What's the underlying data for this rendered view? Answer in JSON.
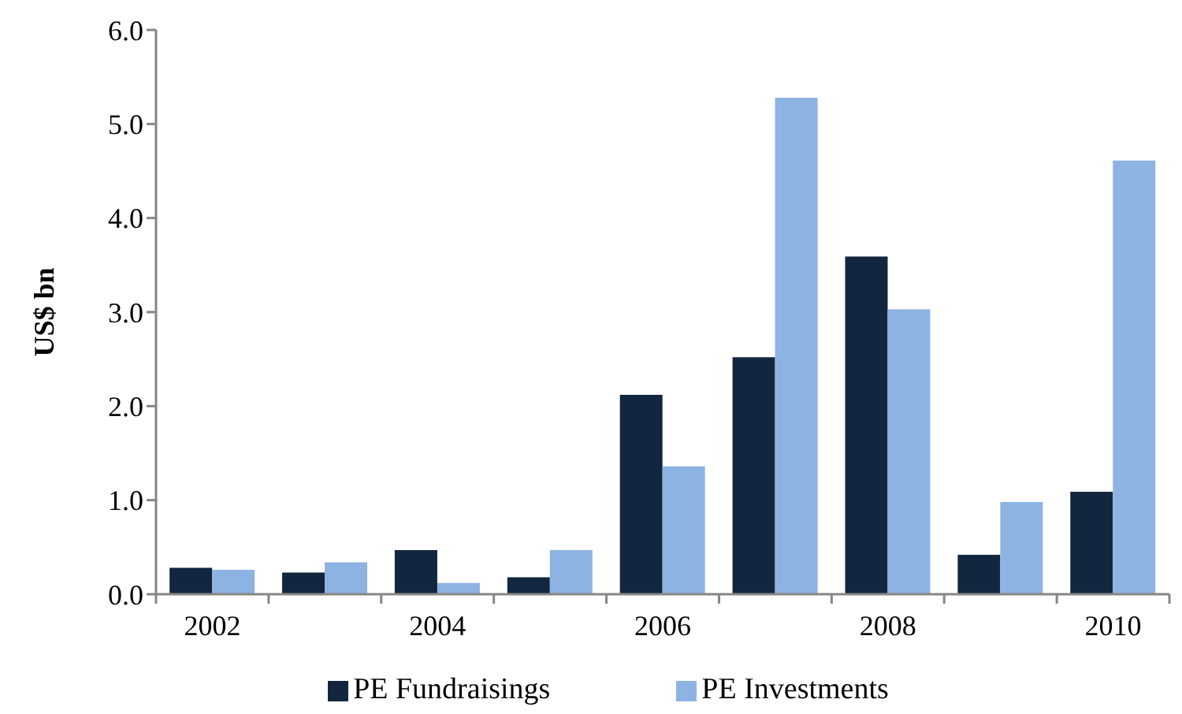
{
  "chart_data": {
    "type": "bar",
    "ylabel": "US$ bn",
    "categories": [
      "2002",
      null,
      "2004",
      null,
      "2006",
      null,
      "2008",
      null,
      "2010"
    ],
    "series": [
      {
        "name": "PE Fundraisings",
        "color": "#13263f",
        "values": [
          0.28,
          0.23,
          0.47,
          0.18,
          2.12,
          2.52,
          3.59,
          0.42,
          1.09
        ]
      },
      {
        "name": "PE Investments",
        "color": "#8db3e2",
        "values": [
          0.26,
          0.34,
          0.12,
          0.47,
          1.36,
          5.28,
          3.03,
          0.98,
          4.61
        ]
      }
    ],
    "ylim": [
      0,
      6
    ],
    "yticks": [
      {
        "value": 0,
        "label": "0.0"
      },
      {
        "value": 1,
        "label": "1.0"
      },
      {
        "value": 2,
        "label": "2.0"
      },
      {
        "value": 3,
        "label": "3.0"
      },
      {
        "value": 4,
        "label": "4.0"
      },
      {
        "value": 5,
        "label": "5.0"
      },
      {
        "value": 6,
        "label": "6.0"
      }
    ],
    "legend": "bottom"
  }
}
